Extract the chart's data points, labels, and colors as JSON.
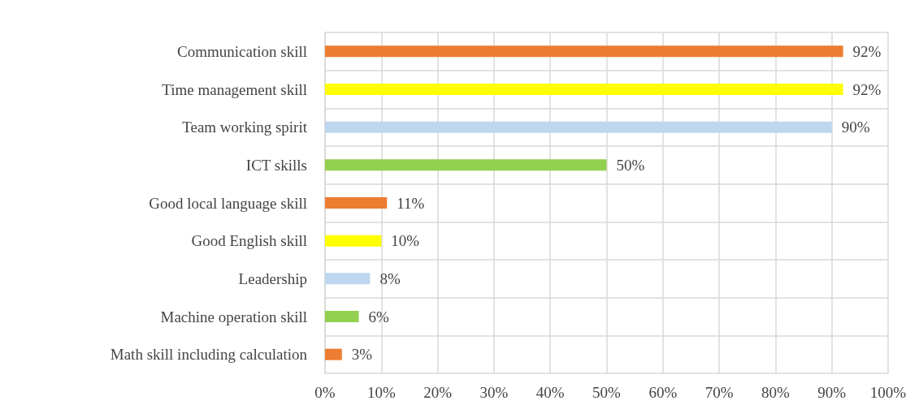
{
  "chart_data": {
    "type": "bar",
    "orientation": "horizontal",
    "categories": [
      "Communication skill",
      "Time management skill",
      "Team working spirit",
      "ICT skills",
      "Good local language skill",
      "Good English skill",
      "Leadership",
      "Machine operation skill",
      "Math skill including calculation"
    ],
    "values": [
      92,
      92,
      90,
      50,
      11,
      10,
      8,
      6,
      3
    ],
    "colors": [
      "#ed7d31",
      "#ffff00",
      "#bdd7ee",
      "#92d050",
      "#ed7d31",
      "#ffff00",
      "#bdd7ee",
      "#92d050",
      "#ed7d31"
    ],
    "value_labels": [
      "92%",
      "92%",
      "90%",
      "50%",
      "11%",
      "10%",
      "8%",
      "6%",
      "3%"
    ],
    "xlim": [
      0,
      100
    ],
    "xticks": [
      {
        "value": 0,
        "label": "0%"
      },
      {
        "value": 10,
        "label": "10%"
      },
      {
        "value": 20,
        "label": "20%"
      },
      {
        "value": 30,
        "label": "30%"
      },
      {
        "value": 40,
        "label": "40%"
      },
      {
        "value": 50,
        "label": "50%"
      },
      {
        "value": 60,
        "label": "60%"
      },
      {
        "value": 70,
        "label": "70%"
      },
      {
        "value": 80,
        "label": "80%"
      },
      {
        "value": 90,
        "label": "90%"
      },
      {
        "value": 100,
        "label": "100%"
      }
    ],
    "grid": true
  }
}
